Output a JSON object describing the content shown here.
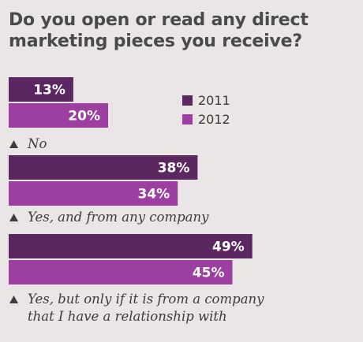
{
  "chart_data": {
    "type": "bar",
    "orientation": "horizontal",
    "title": "Do you open or read any direct marketing pieces you receive?",
    "categories": [
      "No",
      "Yes, and from any company",
      "Yes, but only if it is from a company that I have a relationship with"
    ],
    "series": [
      {
        "name": "2011",
        "values": [
          13,
          38,
          49
        ],
        "labels": [
          "13%",
          "38%",
          "49%"
        ],
        "color": "#5b2760"
      },
      {
        "name": "2012",
        "values": [
          20,
          34,
          45
        ],
        "labels": [
          "20%",
          "34%",
          "45%"
        ],
        "color": "#9c3fa1"
      }
    ],
    "unit": "%",
    "legend_position": "top-right",
    "grid": false
  }
}
